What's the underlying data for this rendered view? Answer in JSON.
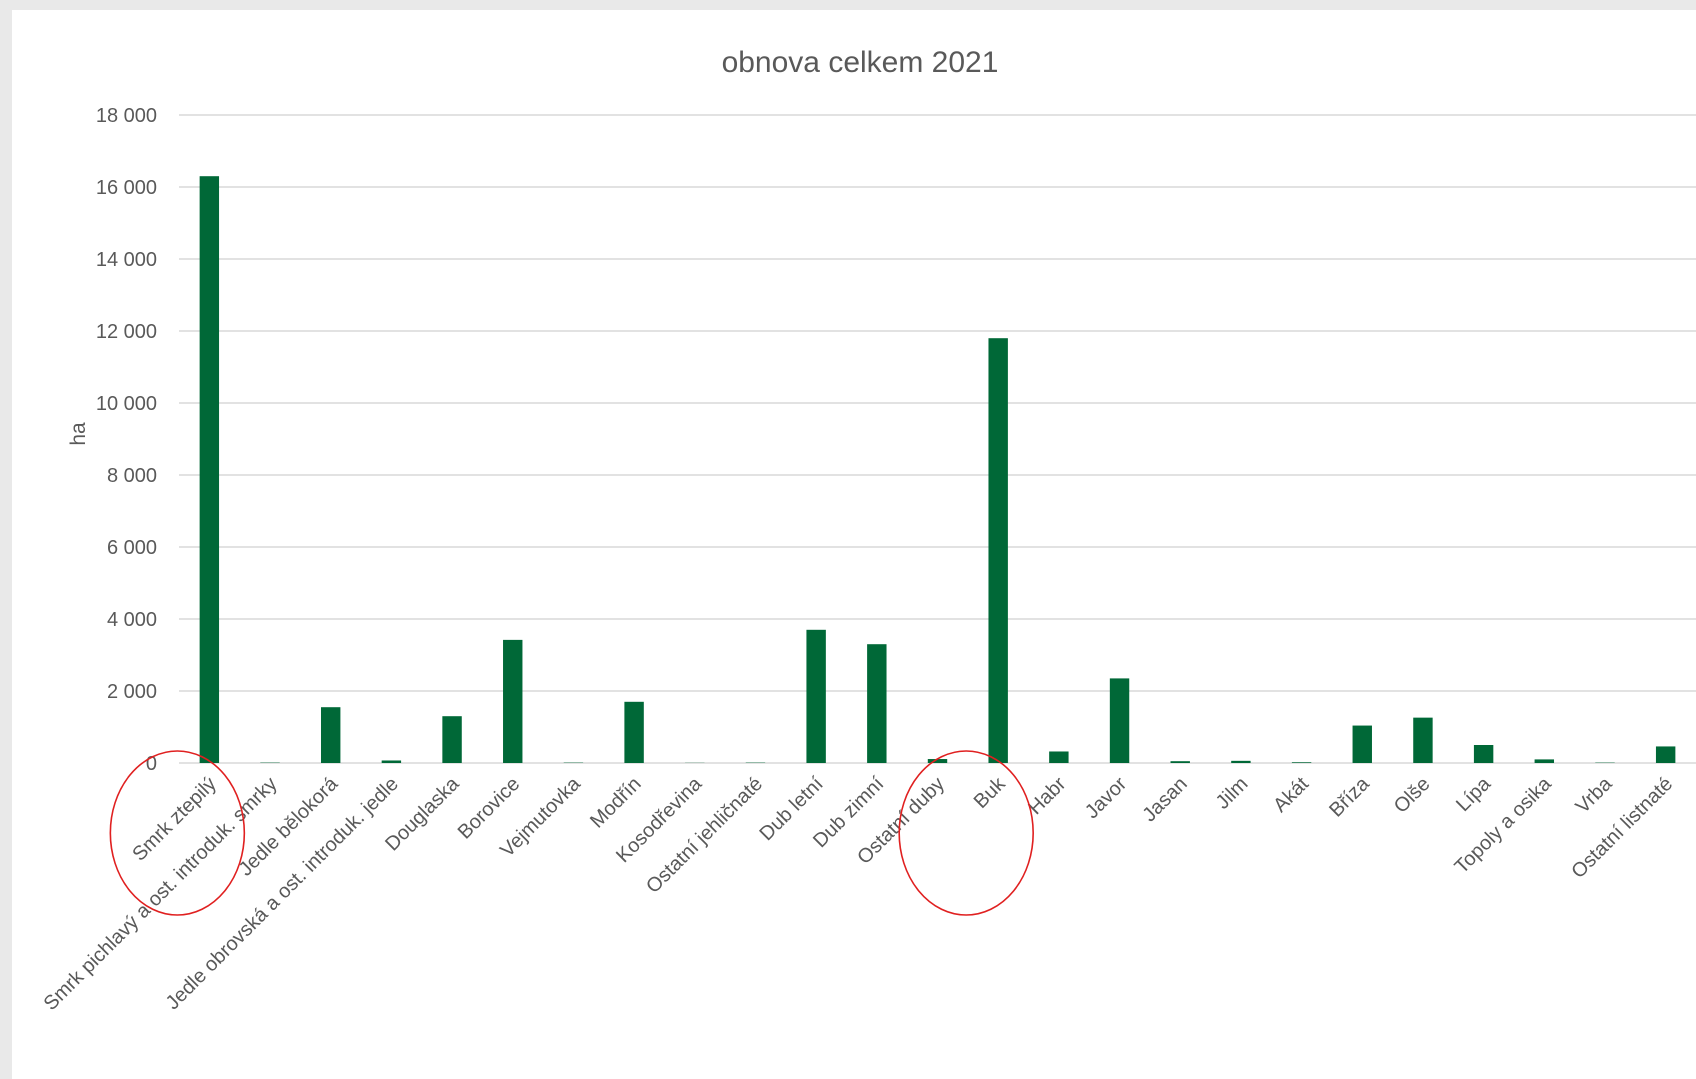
{
  "chart_data": {
    "type": "bar",
    "title": "obnova celkem 2021",
    "xlabel": "",
    "ylabel": "ha",
    "ylim": [
      0,
      18000
    ],
    "yticks": [
      0,
      2000,
      4000,
      6000,
      8000,
      10000,
      12000,
      14000,
      16000,
      18000
    ],
    "ytick_labels": [
      "0",
      "2 000",
      "4 000",
      "6 000",
      "8 000",
      "10 000",
      "12 000",
      "14 000",
      "16 000",
      "18 000"
    ],
    "grid": true,
    "legend": "none",
    "bar_color": "#006837",
    "annotation_color": "#e02020",
    "categories": [
      "Smrk ztepilý",
      "Smrk pichlavý a ost. introduk. smrky",
      "Jedle bělokorá",
      "Jedle obrovská a ost. introduk. jedle",
      "Douglaska",
      "Borovice",
      "Vejmutovka",
      "Modřín",
      "Kosodřevina",
      "Ostatní jehličnaté",
      "Dub letní",
      "Dub zimní",
      "Ostatní duby",
      "Buk",
      "Habr",
      "Javor",
      "Jasan",
      "Jilm",
      "Akát",
      "Bříza",
      "Olše",
      "Lípa",
      "Topoly a osika",
      "Vrba",
      "Ostatní listnaté"
    ],
    "values": [
      16300,
      10,
      1550,
      70,
      1300,
      3420,
      10,
      1700,
      5,
      10,
      3700,
      3300,
      110,
      11800,
      320,
      2350,
      50,
      60,
      20,
      1040,
      1260,
      500,
      100,
      10,
      460
    ],
    "annotations": [
      "Smrk ztepilý",
      "Buk"
    ]
  }
}
